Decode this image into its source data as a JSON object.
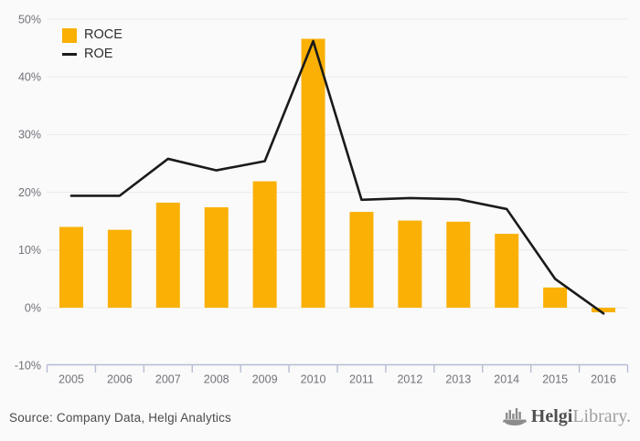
{
  "chart_data": {
    "type": "bar",
    "title": "",
    "xlabel": "",
    "ylabel": "",
    "categories": [
      "2005",
      "2006",
      "2007",
      "2008",
      "2009",
      "2010",
      "2011",
      "2012",
      "2013",
      "2014",
      "2015",
      "2016"
    ],
    "series": [
      {
        "name": "ROCE",
        "type": "bar",
        "color": "#FAB005",
        "values": [
          14.0,
          13.5,
          18.2,
          17.4,
          21.9,
          46.6,
          16.6,
          15.1,
          14.9,
          12.8,
          3.5,
          -0.8
        ]
      },
      {
        "name": "ROE",
        "type": "line",
        "color": "#1A1A1A",
        "values": [
          19.4,
          19.4,
          25.8,
          23.8,
          25.4,
          46.2,
          18.7,
          19.0,
          18.8,
          17.1,
          5.0,
          -1.0
        ]
      }
    ],
    "ylim": [
      -10,
      50
    ],
    "ytick_values": [
      50,
      40,
      30,
      20,
      10,
      0,
      -10
    ],
    "ytick_labels": [
      "50%",
      "40%",
      "30%",
      "20%",
      "10%",
      "0%",
      "-10%"
    ],
    "grid": true,
    "legend_position": "top-left"
  },
  "legend": {
    "items": [
      {
        "label": "ROCE",
        "swatch": "square"
      },
      {
        "label": "ROE",
        "swatch": "line"
      }
    ]
  },
  "footer": {
    "source": "Source: Company Data, Helgi Analytics",
    "logo_bold": "Helgi",
    "logo_light": "Library."
  },
  "colors": {
    "background": "#FAFAFA",
    "grid": "#E9E9E9",
    "axis": "#B5BDD3",
    "tick_label": "#71717A",
    "bar": "#FAB005",
    "line": "#1A1A1A",
    "legend_text": "#2E2E2E",
    "source_text": "#4B4B4B",
    "logo_dark": "#4F4F4F",
    "logo_light": "#9E9E9E"
  }
}
